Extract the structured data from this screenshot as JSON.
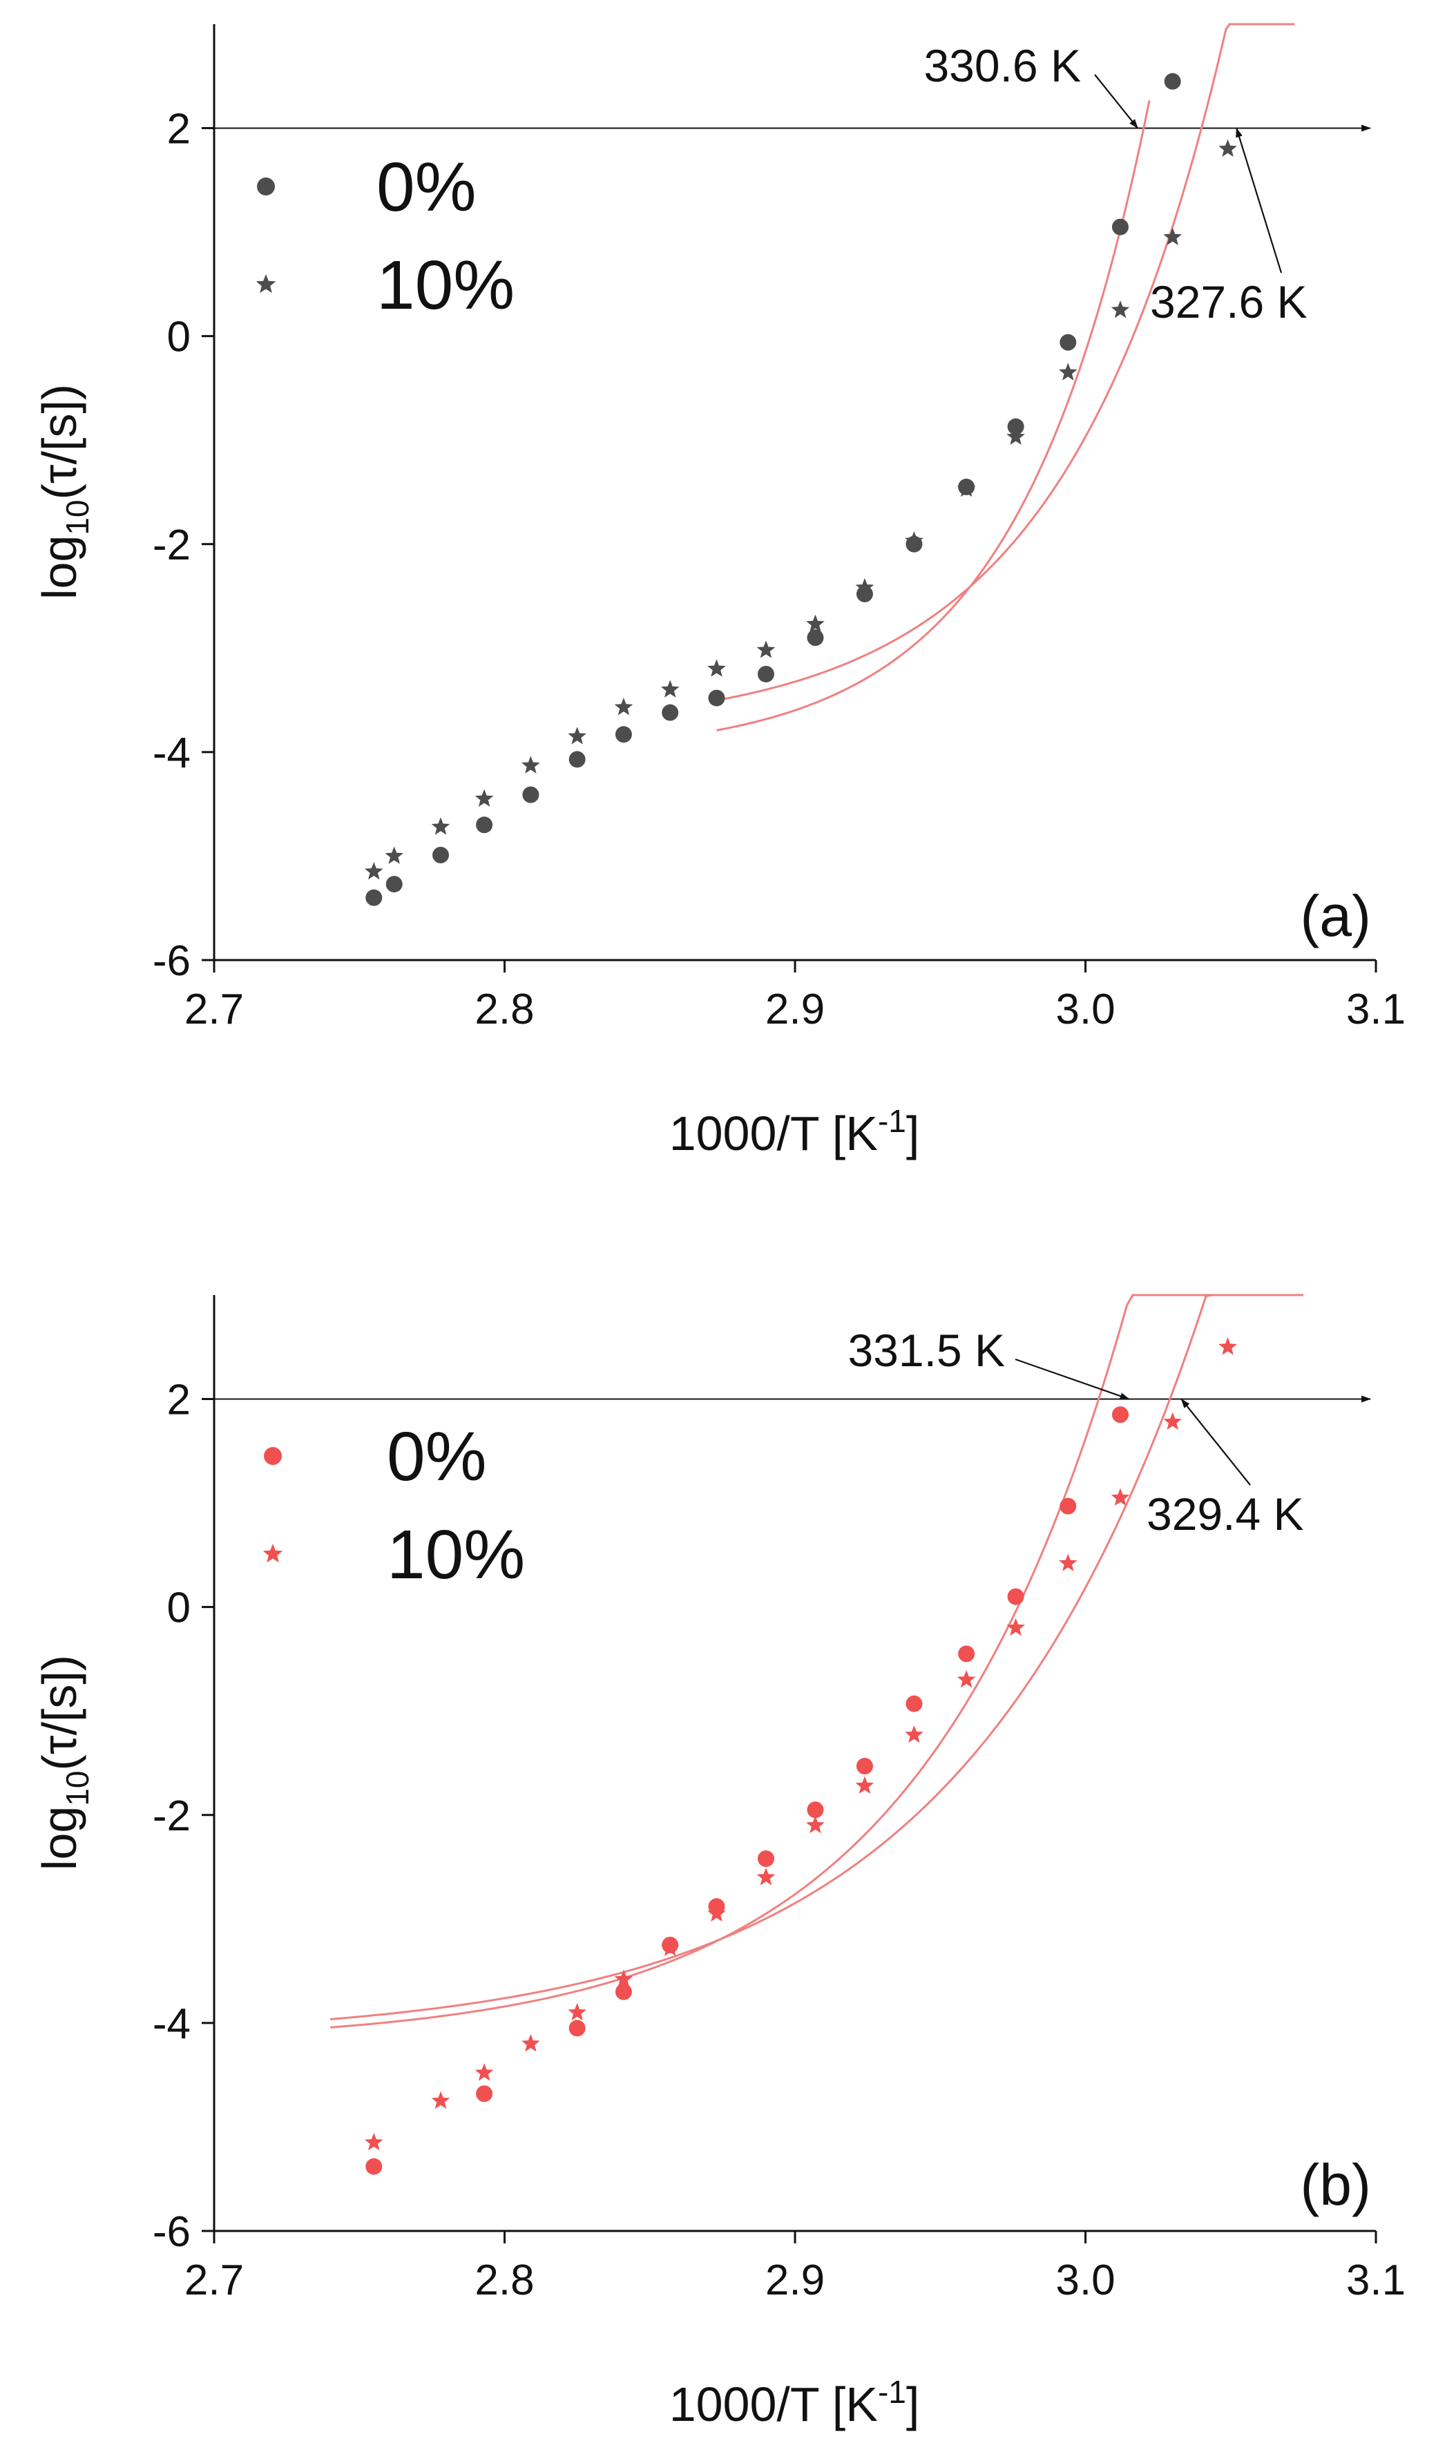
{
  "chart_data": [
    {
      "panel_label": "(a)",
      "type": "scatter",
      "title": "",
      "xlabel_main": "1000/T [K",
      "xlabel_sup": "-1",
      "xlabel_end": "]",
      "ylabel_pre": "log",
      "ylabel_sub": "10",
      "ylabel_post": "(τ/[s])",
      "xlim": [
        2.7,
        3.1
      ],
      "ylim": [
        -6,
        3
      ],
      "xticks": [
        2.7,
        2.8,
        2.9,
        3.0,
        3.1
      ],
      "xtick_labels": [
        "2.7",
        "2.8",
        "2.9",
        "3.0",
        "3.1"
      ],
      "yticks": [
        -6,
        -4,
        -2,
        0,
        2
      ],
      "ytick_labels": [
        "-6",
        "-4",
        "-2",
        "0",
        "2"
      ],
      "marker_color": "#4d4d4d",
      "fit_color": "#f08080",
      "reference_y": 2,
      "legend_position": "top-left",
      "series": [
        {
          "name": "0%",
          "marker": "circle",
          "x": [
            2.755,
            2.762,
            2.778,
            2.793,
            2.809,
            2.825,
            2.841,
            2.857,
            2.873,
            2.89,
            2.907,
            2.924,
            2.941,
            2.959,
            2.976,
            2.994,
            3.012,
            3.03
          ],
          "y": [
            -5.4,
            -5.27,
            -4.99,
            -4.7,
            -4.41,
            -4.07,
            -3.83,
            -3.62,
            -3.48,
            -3.25,
            -2.9,
            -2.48,
            -2.0,
            -1.45,
            -0.87,
            -0.06,
            1.05,
            2.45
          ],
          "fit": {
            "x0": 2.873,
            "x1": 3.022,
            "curvature": 2.2
          }
        },
        {
          "name": "10%",
          "marker": "star",
          "x": [
            2.755,
            2.762,
            2.778,
            2.793,
            2.809,
            2.825,
            2.841,
            2.857,
            2.873,
            2.89,
            2.907,
            2.924,
            2.941,
            2.959,
            2.976,
            2.994,
            3.012,
            3.03,
            3.049
          ],
          "y": [
            -5.15,
            -5.0,
            -4.72,
            -4.45,
            -4.13,
            -3.85,
            -3.57,
            -3.4,
            -3.2,
            -3.02,
            -2.77,
            -2.42,
            -1.97,
            -1.47,
            -0.97,
            -0.35,
            0.25,
            0.95,
            1.8
          ],
          "fit": {
            "x0": 2.873,
            "x1": 3.072,
            "curvature": 1.8
          }
        }
      ],
      "annotations": [
        {
          "text": "330.6 K",
          "x": 3.018,
          "y": 2.0
        },
        {
          "text": "327.6 K",
          "x": 3.052,
          "y": 2.0
        }
      ]
    },
    {
      "panel_label": "(b)",
      "type": "scatter",
      "title": "",
      "xlabel_main": "1000/T  [K",
      "xlabel_sup": "-1",
      "xlabel_end": "]",
      "ylabel_pre": "log",
      "ylabel_sub": "10",
      "ylabel_post": "(τ/[s])",
      "xlim": [
        2.7,
        3.1
      ],
      "ylim": [
        -6,
        3
      ],
      "xticks": [
        2.7,
        2.8,
        2.9,
        3.0,
        3.1
      ],
      "xtick_labels": [
        "2.7",
        "2.8",
        "2.9",
        "3.0",
        "3.1"
      ],
      "yticks": [
        -6,
        -4,
        -2,
        0,
        2
      ],
      "ytick_labels": [
        "-6",
        "-4",
        "-2",
        "0",
        "2"
      ],
      "marker_color": "#f05050",
      "fit_color": "#f08080",
      "reference_y": 2,
      "legend_position": "top-left",
      "series": [
        {
          "name": "0%",
          "marker": "circle",
          "x": [
            2.755,
            2.793,
            2.825,
            2.841,
            2.857,
            2.873,
            2.89,
            2.907,
            2.924,
            2.941,
            2.959,
            2.976,
            2.994,
            3.012
          ],
          "y": [
            -5.38,
            -4.68,
            -4.05,
            -3.7,
            -3.25,
            -2.88,
            -2.42,
            -1.95,
            -1.53,
            -0.93,
            -0.45,
            0.1,
            0.97,
            1.85
          ],
          "fit": {
            "x0": 2.74,
            "x1": 3.058,
            "curvature": 1.4
          }
        },
        {
          "name": "10%",
          "marker": "star",
          "x": [
            2.755,
            2.778,
            2.793,
            2.809,
            2.825,
            2.841,
            2.857,
            2.873,
            2.89,
            2.907,
            2.924,
            2.941,
            2.959,
            2.976,
            2.994,
            3.012,
            3.03,
            3.049
          ],
          "y": [
            -5.15,
            -4.75,
            -4.48,
            -4.2,
            -3.9,
            -3.58,
            -3.28,
            -2.95,
            -2.6,
            -2.1,
            -1.72,
            -1.23,
            -0.7,
            -0.2,
            0.42,
            1.05,
            1.78,
            2.5
          ],
          "fit": {
            "x0": 2.74,
            "x1": 3.075,
            "curvature": 1.2
          }
        }
      ],
      "annotations": [
        {
          "text": "331.5 K",
          "x": 3.015,
          "y": 2.0
        },
        {
          "text": "329.4 K",
          "x": 3.033,
          "y": 2.0
        }
      ]
    }
  ]
}
